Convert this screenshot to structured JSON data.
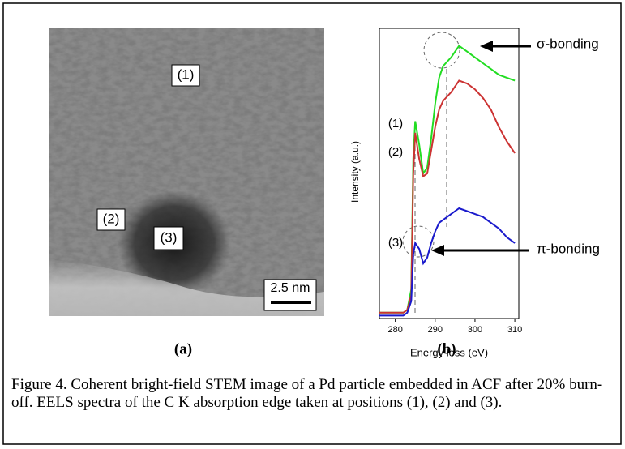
{
  "figure": {
    "panel_a": {
      "labels": [
        "(1)",
        "(2)",
        "(3)"
      ],
      "scale_bar": "2.5 nm",
      "caption": "(a)"
    },
    "panel_b": {
      "caption": "(b)"
    },
    "caption": "Figure 4. Coherent bright-field STEM image of a Pd particle embedded in ACF after 20% burn-off.  EELS spectra of the C K absorption edge taken at positions (1), (2) and (3)."
  },
  "chart_data": {
    "type": "line",
    "x_label": "Energy loss (eV)",
    "y_label": "Intensity (a.u.)",
    "x": [
      276,
      278,
      280,
      282,
      283,
      284,
      284.5,
      285,
      286,
      287,
      288,
      289,
      290,
      291,
      292,
      294,
      296,
      298,
      300,
      302,
      304,
      306,
      308,
      310
    ],
    "xlim": [
      276,
      311
    ],
    "xticks": [
      280,
      290,
      300,
      310
    ],
    "ylim": [
      0,
      100
    ],
    "series": [
      {
        "name": "(1)",
        "color": "#22dd22",
        "values": [
          2,
          2,
          2,
          2,
          3,
          10,
          55,
          68,
          60,
          50,
          52,
          62,
          74,
          83,
          87,
          90,
          94,
          92,
          90,
          88,
          86,
          84,
          83,
          82
        ]
      },
      {
        "name": "(2)",
        "color": "#cc3333",
        "values": [
          2,
          2,
          2,
          2,
          3,
          8,
          50,
          64,
          55,
          49,
          50,
          58,
          66,
          72,
          75,
          78,
          82,
          81,
          79,
          76,
          72,
          66,
          61,
          57
        ]
      },
      {
        "name": "(3)",
        "color": "#1a1acc",
        "values": [
          1,
          1,
          1,
          1,
          2,
          6,
          22,
          26,
          24,
          19,
          21,
          26,
          30,
          33,
          34,
          36,
          38,
          37,
          36,
          35,
          33,
          31,
          28,
          26
        ]
      }
    ],
    "annotations": [
      "σ-bonding",
      "π-bonding"
    ]
  }
}
